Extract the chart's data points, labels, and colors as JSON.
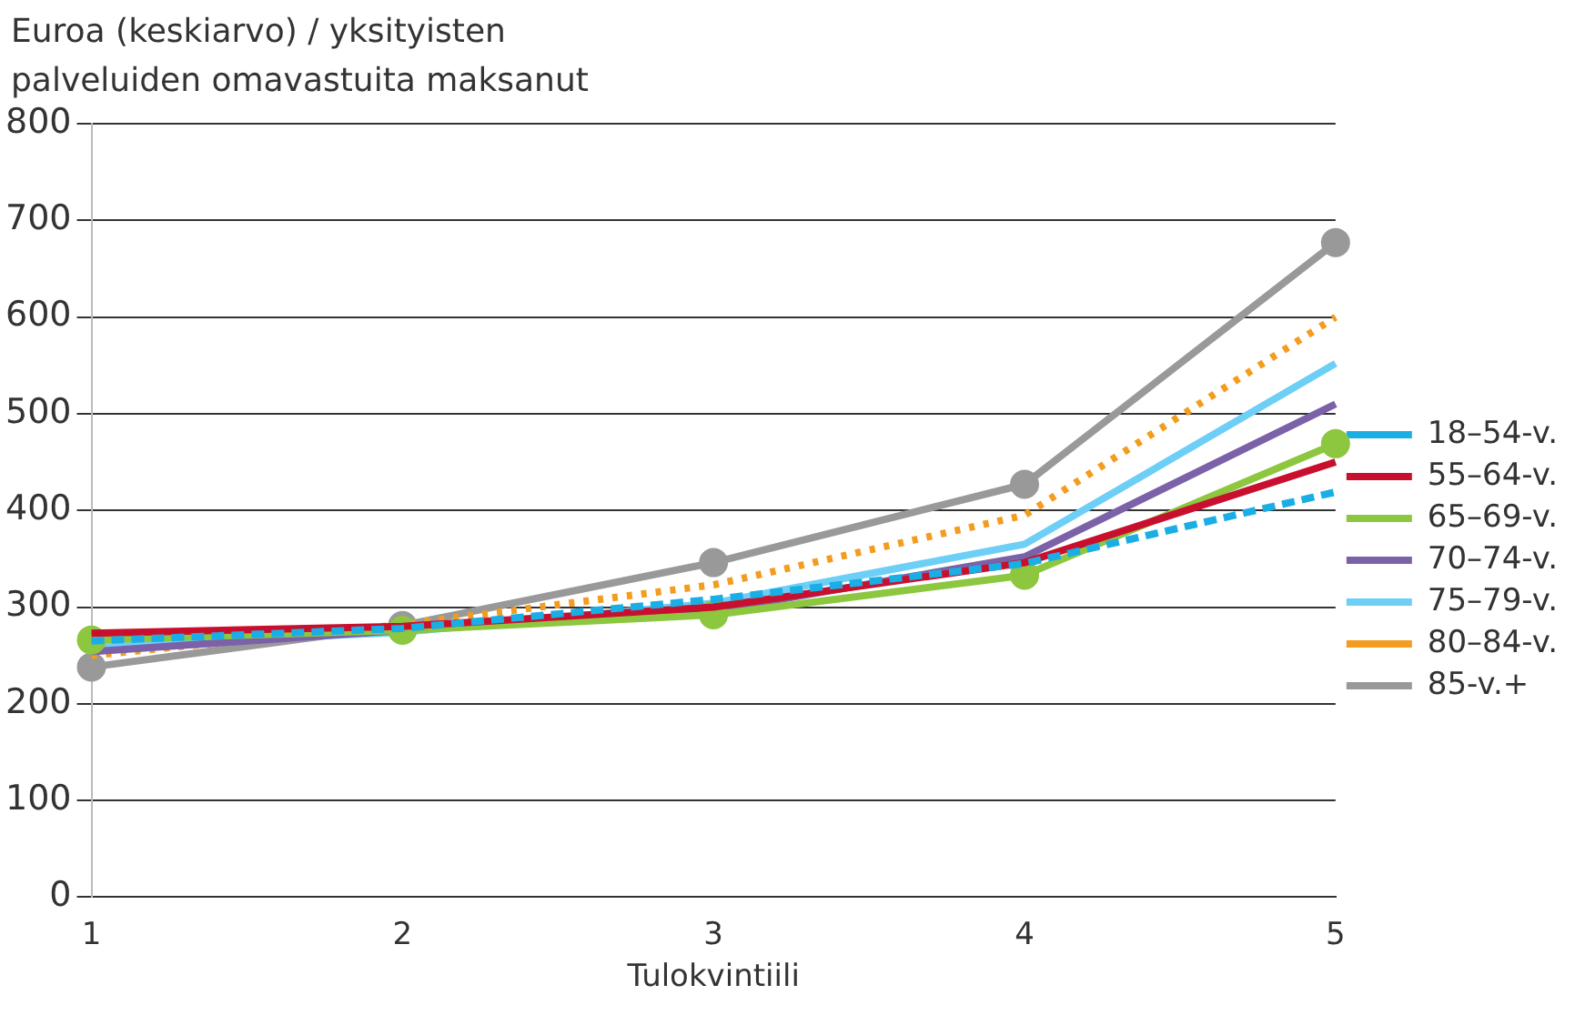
{
  "chart_data": {
    "type": "line",
    "ylabel": "Euroa (keskiarvo) / yksityisten palveluiden omavastuita maksanut",
    "xlabel": "Tulokvintiili",
    "categories": [
      "1",
      "2",
      "3",
      "4",
      "5"
    ],
    "series": [
      {
        "name": "18–54-v.",
        "color": "#1aaee5",
        "line_style": "dashed",
        "marker": "none",
        "values": [
          265,
          278,
          308,
          345,
          419
        ]
      },
      {
        "name": "55–64-v.",
        "color": "#c8102e",
        "line_style": "solid",
        "marker": "none",
        "values": [
          273,
          280,
          300,
          346,
          450
        ]
      },
      {
        "name": "65–69-v.",
        "color": "#8dc63f",
        "line_style": "solid",
        "marker": "circle",
        "values": [
          266,
          276,
          292,
          333,
          469
        ]
      },
      {
        "name": "70–74-v.",
        "color": "#7b61a8",
        "line_style": "solid",
        "marker": "none",
        "values": [
          254,
          276,
          296,
          352,
          510
        ]
      },
      {
        "name": "75–79-v.",
        "color": "#6dcff6",
        "line_style": "solid",
        "marker": "none",
        "values": [
          260,
          274,
          304,
          365,
          552
        ]
      },
      {
        "name": "80–84-v.",
        "color": "#f39c1f",
        "line_style": "dotted",
        "marker": "none",
        "values": [
          250,
          282,
          323,
          395,
          600
        ]
      },
      {
        "name": "85-v.+",
        "color": "#999999",
        "line_style": "solid",
        "marker": "circle",
        "values": [
          238,
          281,
          346,
          427,
          677
        ]
      }
    ],
    "ylim": [
      0,
      800
    ],
    "yticks": [
      0,
      100,
      200,
      300,
      400,
      500,
      600,
      700,
      800
    ],
    "grid": "y",
    "legend": "right"
  }
}
